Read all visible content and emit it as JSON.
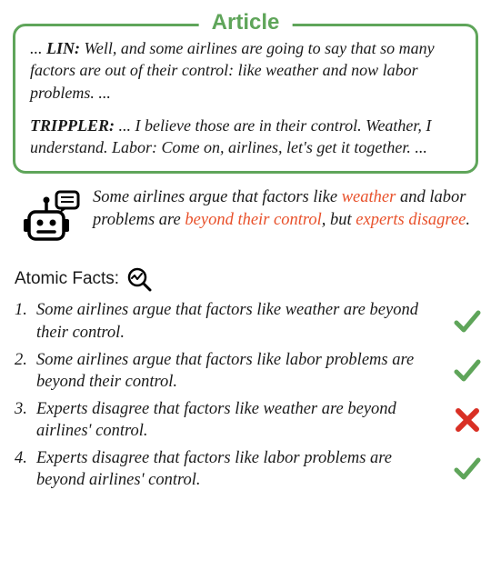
{
  "article": {
    "label": "Article",
    "border_color": "#5fa55a",
    "paragraphs": [
      {
        "prefix": "... ",
        "speaker": "LIN:",
        "body": " Well, and some airlines are going to say that so many factors are out of their control: like weather and now labor problems. ..."
      },
      {
        "prefix": "",
        "speaker": "TRIPPLER:",
        "body": " ... I believe those are in their control. Weather, I understand. Labor: Come on, airlines, let's get it together. ..."
      }
    ]
  },
  "bot_summary": {
    "segments": [
      {
        "text": "Some airlines argue that factors like ",
        "highlight": false
      },
      {
        "text": "weather",
        "highlight": true
      },
      {
        "text": " and labor problems are ",
        "highlight": false
      },
      {
        "text": "beyond their control",
        "highlight": true
      },
      {
        "text": ", but ",
        "highlight": false
      },
      {
        "text": "experts disagree",
        "highlight": true
      },
      {
        "text": ".",
        "highlight": false
      }
    ],
    "highlight_color": "#e8502a"
  },
  "atomic_facts": {
    "header": "Atomic Facts:",
    "items": [
      {
        "num": "1.",
        "text": "Some airlines argue that factors like weather are beyond their control.",
        "status": "check"
      },
      {
        "num": "2.",
        "text": "Some airlines argue that factors like labor problems are beyond their control.",
        "status": "check"
      },
      {
        "num": "3.",
        "text": "Experts disagree that factors like weather are beyond airlines' control.",
        "status": "cross"
      },
      {
        "num": "4.",
        "text": "Experts disagree that factors like labor problems are beyond airlines' control.",
        "status": "check"
      }
    ],
    "check_color": "#5fa55a",
    "cross_color": "#d93025"
  }
}
